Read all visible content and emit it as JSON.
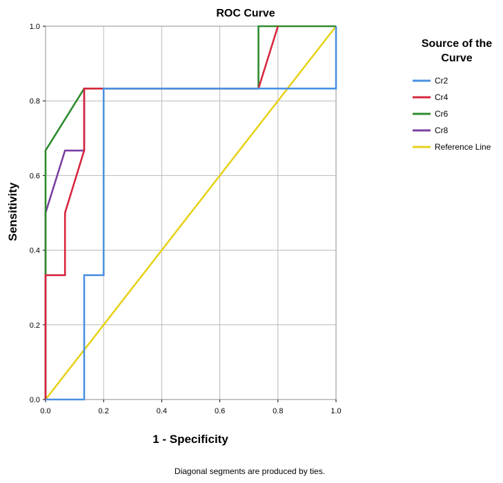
{
  "chart_data": {
    "type": "line",
    "title": "ROC Curve",
    "xlabel": "1 - Specificity",
    "ylabel": "Sensitivity",
    "xlim": [
      0,
      1
    ],
    "ylim": [
      0,
      1
    ],
    "xticks": [
      "0.0",
      "0.2",
      "0.4",
      "0.6",
      "0.8",
      "1.0"
    ],
    "yticks": [
      "0.0",
      "0.2",
      "0.4",
      "0.6",
      "0.8",
      "1.0"
    ],
    "grid": true,
    "legend": {
      "title_lines": [
        "Source of the",
        "Curve"
      ],
      "placement": "right"
    },
    "footnote": "Diagonal segments are produced by ties.",
    "series": [
      {
        "name": "Cr2",
        "color": "#4a90e2",
        "x": [
          0,
          0.133,
          0.133,
          0.2,
          0.2,
          1.0,
          1.0
        ],
        "y": [
          0,
          0,
          0.333,
          0.333,
          0.833,
          0.833,
          1.0
        ]
      },
      {
        "name": "Cr4",
        "color": "#d7263d",
        "x": [
          0,
          0,
          0.067,
          0.067,
          0.133,
          0.133,
          0.733,
          0.8
        ],
        "y": [
          0,
          0.333,
          0.333,
          0.5,
          0.667,
          0.833,
          0.833,
          1.0
        ]
      },
      {
        "name": "Cr6",
        "color": "#2e8b2e",
        "x": [
          0,
          0,
          0.133,
          0.733,
          0.733,
          1.0
        ],
        "y": [
          0,
          0.667,
          0.833,
          0.833,
          1.0,
          1.0
        ]
      },
      {
        "name": "Cr8",
        "color": "#7b3fa0",
        "x": [
          0,
          0,
          0.067,
          0.133,
          0.133
        ],
        "y": [
          0,
          0.5,
          0.667,
          0.667,
          0.833
        ]
      },
      {
        "name": "Reference Line",
        "color": "#e6d21a",
        "x": [
          0,
          1
        ],
        "y": [
          0,
          1
        ]
      }
    ]
  }
}
